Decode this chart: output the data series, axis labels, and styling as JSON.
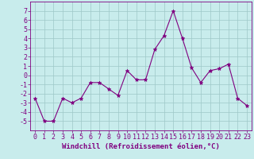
{
  "x": [
    0,
    1,
    2,
    3,
    4,
    5,
    6,
    7,
    8,
    9,
    10,
    11,
    12,
    13,
    14,
    15,
    16,
    17,
    18,
    19,
    20,
    21,
    22,
    23
  ],
  "y": [
    -2.5,
    -5.0,
    -5.0,
    -2.5,
    -3.0,
    -2.5,
    -0.8,
    -0.8,
    -1.5,
    -2.2,
    0.5,
    -0.5,
    -0.5,
    2.8,
    4.3,
    7.0,
    4.0,
    0.8,
    -0.8,
    0.5,
    0.7,
    1.2,
    -2.5,
    -3.3
  ],
  "line_color": "#800080",
  "marker": "*",
  "marker_size": 3.5,
  "bg_color": "#c8ecec",
  "grid_color": "#9ec8c8",
  "ylim": [
    -6,
    8
  ],
  "xlim": [
    -0.5,
    23.5
  ],
  "yticks": [
    -5,
    -4,
    -3,
    -2,
    -1,
    0,
    1,
    2,
    3,
    4,
    5,
    6,
    7
  ],
  "xticks": [
    0,
    1,
    2,
    3,
    4,
    5,
    6,
    7,
    8,
    9,
    10,
    11,
    12,
    13,
    14,
    15,
    16,
    17,
    18,
    19,
    20,
    21,
    22,
    23
  ],
  "spine_color": "#800080",
  "tick_color": "#800080",
  "label_color": "#800080",
  "xlabel": "Windchill (Refroidissement éolien,°C)",
  "xlabel_fontsize": 6.5,
  "tick_fontsize": 6.0
}
